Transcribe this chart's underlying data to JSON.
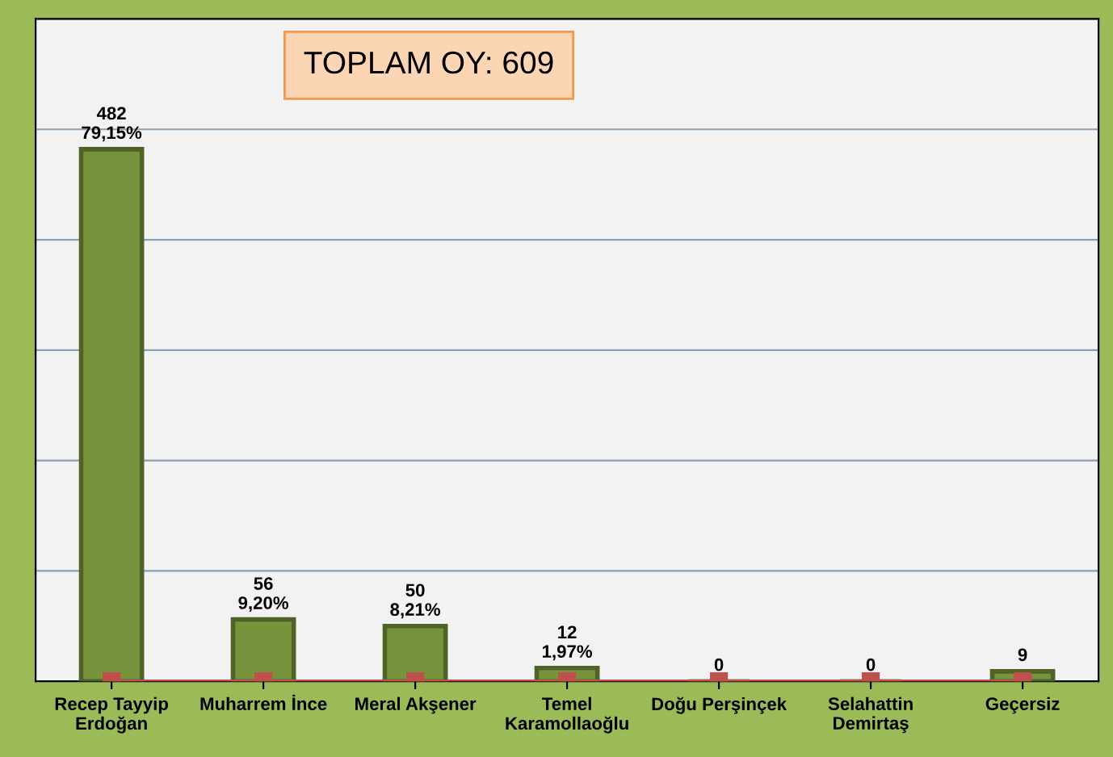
{
  "chart_data": {
    "type": "bar",
    "title": "TOPLAM OY: 609",
    "categories": [
      "Recep Tayyip\nErdoğan",
      "Muharrem İnce",
      "Meral Akşener",
      "Temel\nKaramollaoğlu",
      "Doğu Perşinçek",
      "Selahattin\nDemirtaş",
      "Geçersiz"
    ],
    "series": [
      {
        "color": "#77933c",
        "values": [
          482,
          56,
          50,
          12,
          0,
          0,
          9
        ],
        "value_labels": [
          "482\n79,15%",
          "56\n9,20%",
          "50\n8,21%",
          "12\n1,97%",
          "0",
          "0",
          "9"
        ]
      },
      {
        "type": "line",
        "color": "#c0504d",
        "values": [
          0,
          0,
          0,
          0,
          0,
          0,
          0
        ],
        "marker": "square"
      }
    ],
    "ylim": [
      0,
      600
    ],
    "yticks": [
      {
        "value": 0,
        "label": null
      },
      {
        "value": 100,
        "label": null
      },
      {
        "value": 200,
        "label": null
      },
      {
        "value": 300,
        "label": null
      },
      {
        "value": 400,
        "label": null
      },
      {
        "value": 500,
        "label": null
      },
      {
        "value": 600,
        "label": null
      }
    ],
    "tick_labels": "x",
    "grid": "y",
    "legend": false
  }
}
